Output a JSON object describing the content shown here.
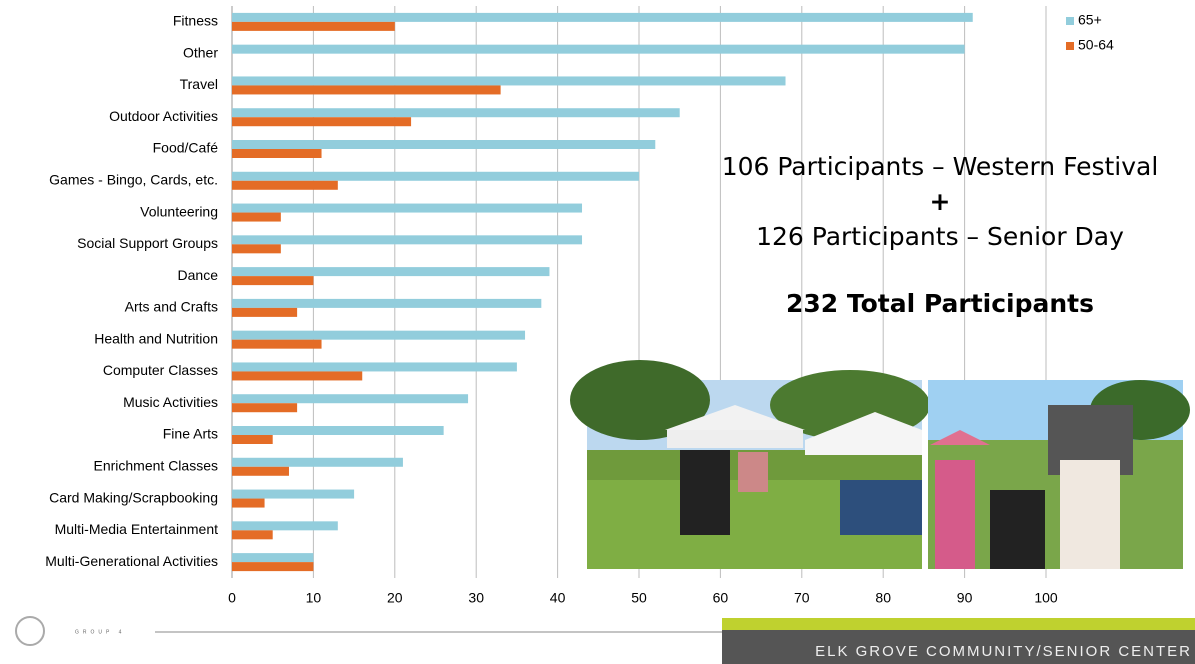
{
  "chart_data": {
    "type": "bar",
    "orientation": "horizontal",
    "categories": [
      "Fitness",
      "Other",
      "Travel",
      "Outdoor Activities",
      "Food/Café",
      "Games - Bingo, Cards, etc.",
      "Volunteering",
      "Social Support Groups",
      "Dance",
      "Arts and Crafts",
      "Health and Nutrition",
      "Computer Classes",
      "Music Activities",
      "Fine Arts",
      "Enrichment Classes",
      "Card Making/Scrapbooking",
      "Multi-Media Entertainment",
      "Multi-Generational Activities"
    ],
    "series": [
      {
        "name": "65+",
        "color": "#92cddc",
        "values": [
          91,
          90,
          68,
          55,
          52,
          50,
          43,
          43,
          39,
          38,
          36,
          35,
          29,
          26,
          21,
          15,
          13,
          10
        ]
      },
      {
        "name": "50-64",
        "color": "#e46c26",
        "values": [
          20,
          0,
          33,
          22,
          11,
          13,
          6,
          6,
          10,
          8,
          11,
          16,
          8,
          5,
          7,
          4,
          5,
          10
        ]
      }
    ],
    "xlim": [
      0,
      100
    ],
    "xticks": [
      0,
      10,
      20,
      30,
      40,
      50,
      60,
      70,
      80,
      90,
      100
    ],
    "grid": true,
    "legend": "top-right",
    "annotations": [
      "106 Participants – Western Festival",
      "+",
      "126 Participants – Senior Day",
      "232 Total Participants"
    ]
  },
  "footer": {
    "logo": "GROUP 4",
    "title": "ELK GROVE COMMUNITY/SENIOR CENTER"
  }
}
